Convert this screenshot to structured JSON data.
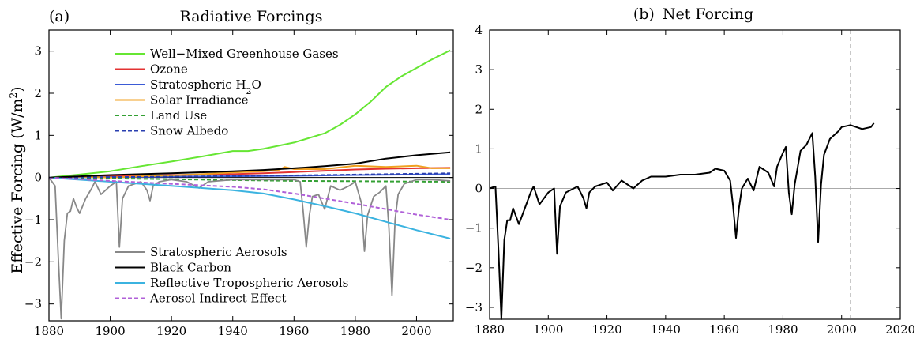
{
  "chart_data": [
    {
      "type": "line",
      "panel": "(a)",
      "title": "Radiative Forcings",
      "ylabel": "Effective Forcing (W/m²)",
      "xlim": [
        1880,
        2012
      ],
      "ylim": [
        -3.4,
        3.5
      ],
      "xticks": [
        1880,
        1900,
        1920,
        1940,
        1960,
        1980,
        2000
      ],
      "yticks": [
        -3,
        -2,
        -1,
        0,
        1,
        2,
        3
      ],
      "series": [
        {
          "name": "Well−Mixed Greenhouse Gases",
          "color": "#66e633",
          "dash": false,
          "x": [
            1880,
            1890,
            1900,
            1910,
            1920,
            1930,
            1940,
            1945,
            1950,
            1960,
            1970,
            1975,
            1980,
            1985,
            1990,
            1995,
            2000,
            2005,
            2011
          ],
          "y": [
            0.0,
            0.07,
            0.15,
            0.27,
            0.38,
            0.5,
            0.63,
            0.63,
            0.68,
            0.83,
            1.05,
            1.25,
            1.5,
            1.8,
            2.15,
            2.4,
            2.6,
            2.8,
            3.02
          ]
        },
        {
          "name": "Ozone",
          "color": "#e33232",
          "dash": false,
          "x": [
            1880,
            1900,
            1920,
            1940,
            1950,
            1960,
            1970,
            1980,
            1990,
            2000,
            2011
          ],
          "y": [
            0.0,
            0.03,
            0.06,
            0.08,
            0.1,
            0.13,
            0.16,
            0.19,
            0.21,
            0.22,
            0.23
          ]
        },
        {
          "name": "Stratospheric H2O",
          "color": "#3b5bd6",
          "dash": false,
          "x": [
            1880,
            1920,
            1960,
            1980,
            2000,
            2011
          ],
          "y": [
            0.0,
            0.02,
            0.04,
            0.06,
            0.07,
            0.08
          ]
        },
        {
          "name": "Solar Irradiance",
          "color": "#f0a020",
          "dash": false,
          "x": [
            1880,
            1890,
            1900,
            1910,
            1920,
            1930,
            1940,
            1950,
            1955,
            1957,
            1960,
            1970,
            1980,
            1990,
            2000,
            2005,
            2011
          ],
          "y": [
            0.0,
            0.02,
            0.0,
            0.03,
            0.05,
            0.08,
            0.12,
            0.15,
            0.18,
            0.25,
            0.2,
            0.2,
            0.28,
            0.25,
            0.28,
            0.22,
            0.22
          ]
        },
        {
          "name": "Land Use",
          "color": "#33a033",
          "dash": true,
          "x": [
            1880,
            1920,
            1960,
            2011
          ],
          "y": [
            0.0,
            -0.04,
            -0.08,
            -0.1
          ]
        },
        {
          "name": "Snow Albedo",
          "color": "#2a3fb0",
          "dash": true,
          "x": [
            1880,
            1920,
            1960,
            2011
          ],
          "y": [
            0.0,
            0.02,
            0.05,
            0.1
          ]
        },
        {
          "name": "Stratospheric Aerosols",
          "color": "#888888",
          "dash": false,
          "x": [
            1880,
            1882,
            1883,
            1884,
            1885,
            1886,
            1887,
            1888,
            1889,
            1890,
            1892,
            1894,
            1895,
            1897,
            1900,
            1902,
            1903,
            1904,
            1906,
            1910,
            1912,
            1913,
            1914,
            1916,
            1920,
            1925,
            1929,
            1932,
            1940,
            1950,
            1955,
            1960,
            1962,
            1963,
            1964,
            1965,
            1966,
            1968,
            1970,
            1972,
            1975,
            1978,
            1980,
            1982,
            1983,
            1984,
            1986,
            1988,
            1990,
            1991,
            1992,
            1993,
            1994,
            1996,
            2000,
            2005,
            2011
          ],
          "y": [
            0.0,
            -0.2,
            -1.8,
            -3.35,
            -1.5,
            -0.85,
            -0.8,
            -0.5,
            -0.7,
            -0.85,
            -0.5,
            -0.25,
            -0.1,
            -0.4,
            -0.2,
            -0.1,
            -1.65,
            -0.5,
            -0.2,
            -0.1,
            -0.3,
            -0.55,
            -0.2,
            -0.1,
            -0.05,
            -0.1,
            -0.25,
            -0.1,
            -0.05,
            -0.05,
            -0.05,
            -0.05,
            -0.1,
            -0.8,
            -1.65,
            -0.9,
            -0.45,
            -0.4,
            -0.75,
            -0.2,
            -0.3,
            -0.2,
            -0.1,
            -0.6,
            -1.75,
            -0.9,
            -0.45,
            -0.35,
            -0.2,
            -1.2,
            -2.8,
            -1.0,
            -0.4,
            -0.15,
            -0.05,
            -0.05,
            -0.08
          ]
        },
        {
          "name": "Black Carbon",
          "color": "#000000",
          "dash": false,
          "x": [
            1880,
            1900,
            1920,
            1940,
            1950,
            1960,
            1970,
            1980,
            1990,
            2000,
            2011
          ],
          "y": [
            0.0,
            0.06,
            0.1,
            0.15,
            0.18,
            0.22,
            0.27,
            0.33,
            0.45,
            0.53,
            0.6
          ]
        },
        {
          "name": "Reflective Tropospheric Aerosols",
          "color": "#3bb3e0",
          "dash": false,
          "x": [
            1880,
            1900,
            1920,
            1940,
            1950,
            1960,
            1970,
            1980,
            1990,
            2000,
            2011
          ],
          "y": [
            0.0,
            -0.1,
            -0.2,
            -0.3,
            -0.38,
            -0.52,
            -0.68,
            -0.85,
            -1.05,
            -1.25,
            -1.45
          ]
        },
        {
          "name": "Aerosol Indirect Effect",
          "color": "#b060d8",
          "dash": true,
          "x": [
            1880,
            1900,
            1920,
            1940,
            1950,
            1960,
            1970,
            1980,
            1990,
            2000,
            2011
          ],
          "y": [
            0.0,
            -0.08,
            -0.15,
            -0.22,
            -0.28,
            -0.38,
            -0.5,
            -0.62,
            -0.75,
            -0.88,
            -1.0
          ]
        }
      ]
    },
    {
      "type": "line",
      "panel": "(b)",
      "title": "Net Forcing",
      "xlim": [
        1880,
        2020
      ],
      "ylim": [
        -3.3,
        4.0
      ],
      "xticks": [
        1880,
        1900,
        1920,
        1940,
        1960,
        1980,
        2000,
        2020
      ],
      "yticks": [
        -3,
        -2,
        -1,
        0,
        1,
        2,
        3,
        4
      ],
      "reference_year": 2003,
      "series": [
        {
          "name": "Net",
          "color": "#000000",
          "dash": false,
          "x": [
            1880,
            1882,
            1883,
            1884,
            1885,
            1886,
            1887,
            1888,
            1889,
            1890,
            1892,
            1894,
            1895,
            1897,
            1900,
            1902,
            1903,
            1904,
            1906,
            1910,
            1912,
            1913,
            1914,
            1916,
            1920,
            1922,
            1925,
            1927,
            1929,
            1932,
            1935,
            1940,
            1945,
            1950,
            1955,
            1957,
            1960,
            1962,
            1963,
            1964,
            1965,
            1966,
            1968,
            1970,
            1972,
            1975,
            1977,
            1978,
            1980,
            1981,
            1982,
            1983,
            1984,
            1986,
            1988,
            1990,
            1991,
            1992,
            1993,
            1994,
            1996,
            1999,
            2000,
            2003,
            2005,
            2007,
            2010,
            2011
          ],
          "y": [
            0.0,
            0.05,
            -1.5,
            -3.3,
            -1.3,
            -0.8,
            -0.8,
            -0.5,
            -0.7,
            -0.9,
            -0.5,
            -0.1,
            0.05,
            -0.4,
            -0.1,
            0.0,
            -1.65,
            -0.45,
            -0.1,
            0.05,
            -0.25,
            -0.5,
            -0.1,
            0.05,
            0.15,
            -0.05,
            0.2,
            0.1,
            0.0,
            0.2,
            0.3,
            0.3,
            0.35,
            0.35,
            0.4,
            0.5,
            0.45,
            0.2,
            -0.45,
            -1.25,
            -0.5,
            0.0,
            0.25,
            -0.05,
            0.55,
            0.4,
            0.05,
            0.55,
            0.9,
            1.05,
            -0.1,
            -0.65,
            0.1,
            0.95,
            1.1,
            1.4,
            0.3,
            -1.35,
            0.1,
            0.85,
            1.25,
            1.45,
            1.55,
            1.6,
            1.55,
            1.5,
            1.55,
            1.65
          ]
        }
      ]
    }
  ],
  "legend_a_top": [
    {
      "label": "Well−Mixed Greenhouse Gases",
      "series": 0
    },
    {
      "label": "Ozone",
      "series": 1
    },
    {
      "label_parts": [
        "Stratospheric H",
        "2",
        "O"
      ],
      "series": 2
    },
    {
      "label": "Solar Irradiance",
      "series": 3
    },
    {
      "label": "Land Use",
      "series": 4
    },
    {
      "label": "Snow Albedo",
      "series": 5
    }
  ],
  "legend_a_bottom": [
    {
      "label": "Stratospheric Aerosols",
      "series": 6
    },
    {
      "label": "Black Carbon",
      "series": 7
    },
    {
      "label": "Reflective Tropospheric Aerosols",
      "series": 8
    },
    {
      "label": "Aerosol Indirect Effect",
      "series": 9
    }
  ],
  "ylabel_parts": [
    "Effective Forcing (W/m",
    "2",
    ")"
  ]
}
